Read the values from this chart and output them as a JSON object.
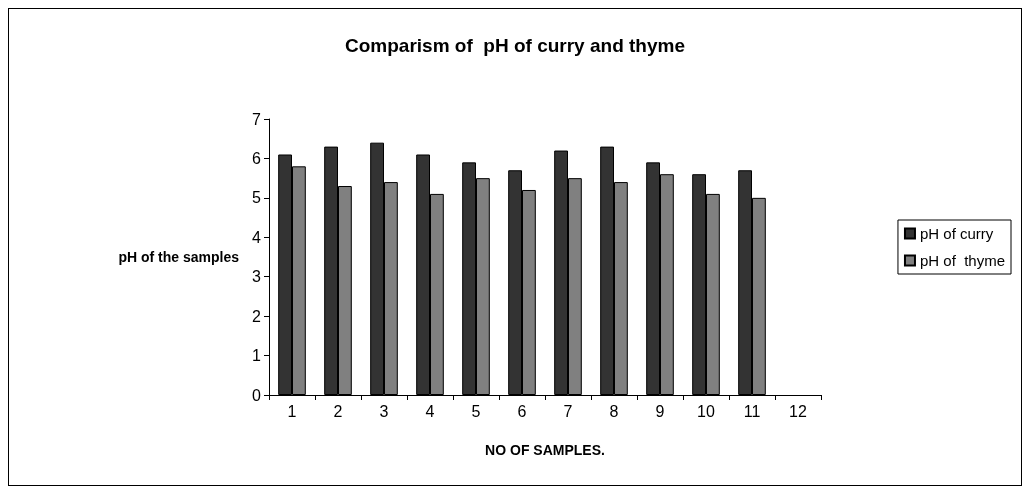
{
  "chart_data": {
    "type": "bar",
    "title": "Comparism of  pH of curry and thyme",
    "xlabel": "NO OF SAMPLES.",
    "ylabel": "pH of the samples",
    "categories": [
      "1",
      "2",
      "3",
      "4",
      "5",
      "6",
      "7",
      "8",
      "9",
      "10",
      "11",
      "12"
    ],
    "series": [
      {
        "name": "pH of curry",
        "color": "#333333",
        "values": [
          6.1,
          6.3,
          6.4,
          6.1,
          5.9,
          5.7,
          6.2,
          6.3,
          5.9,
          5.6,
          5.7,
          null
        ]
      },
      {
        "name": "pH of  thyme",
        "color": "#808080",
        "values": [
          5.8,
          5.3,
          5.4,
          5.1,
          5.5,
          5.2,
          5.5,
          5.4,
          5.6,
          5.1,
          5.0,
          null
        ]
      }
    ],
    "ylim": [
      0,
      7
    ],
    "yticks": [
      0,
      1,
      2,
      3,
      4,
      5,
      6,
      7
    ],
    "grid": false,
    "legend": "right"
  }
}
